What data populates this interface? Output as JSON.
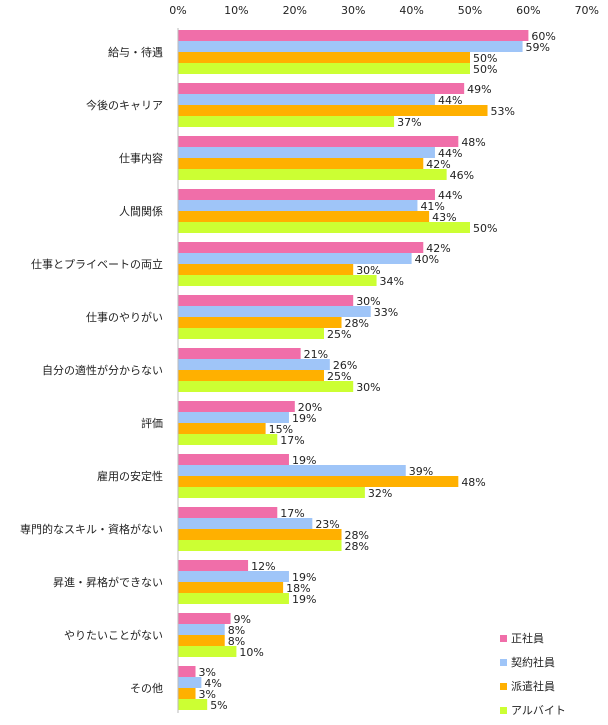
{
  "chart_data": {
    "type": "bar",
    "orientation": "horizontal",
    "title": "",
    "xlabel": "",
    "ylabel": "",
    "xlim": [
      0,
      70
    ],
    "x_ticks": [
      "0%",
      "10%",
      "20%",
      "30%",
      "40%",
      "50%",
      "60%",
      "70%"
    ],
    "x_tick_values": [
      0,
      10,
      20,
      30,
      40,
      50,
      60,
      70
    ],
    "grid": false,
    "legend_position": "bottom-right",
    "unit": "%",
    "categories": [
      "給与・待遇",
      "今後のキャリア",
      "仕事内容",
      "人間関係",
      "仕事とプライベートの両立",
      "仕事のやりがい",
      "自分の適性が分からない",
      "評価",
      "雇用の安定性",
      "専門的なスキル・資格がない",
      "昇進・昇格ができない",
      "やりたいことがない",
      "その他"
    ],
    "series": [
      {
        "name": "正社員",
        "color": "#f06ea9",
        "values": [
          60,
          49,
          48,
          44,
          42,
          30,
          21,
          20,
          19,
          17,
          12,
          9,
          3
        ]
      },
      {
        "name": "契約社員",
        "color": "#9fc5f8",
        "values": [
          59,
          44,
          44,
          41,
          40,
          33,
          26,
          19,
          39,
          23,
          19,
          8,
          4
        ]
      },
      {
        "name": "派遣社員",
        "color": "#ffb000",
        "values": [
          50,
          53,
          42,
          43,
          30,
          28,
          25,
          15,
          48,
          28,
          18,
          8,
          3
        ]
      },
      {
        "name": "アルバイト",
        "color": "#ccff33",
        "values": [
          50,
          37,
          46,
          50,
          34,
          25,
          30,
          17,
          32,
          28,
          19,
          10,
          5
        ]
      }
    ]
  }
}
